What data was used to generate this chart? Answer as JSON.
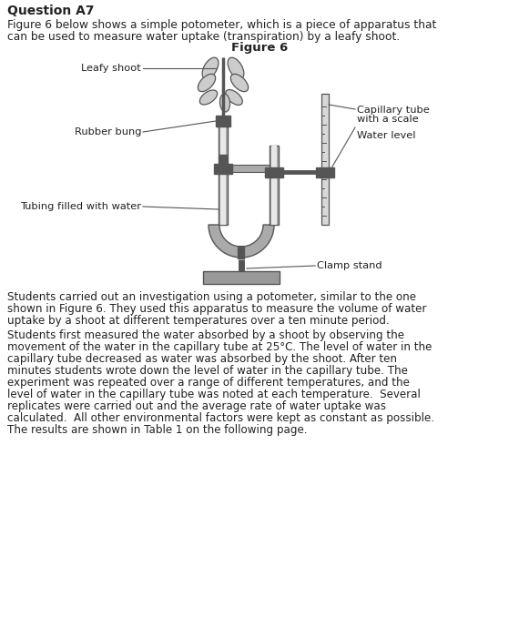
{
  "title": "Question A7",
  "fig_label": "Figure 6",
  "intro_line1": "Figure 6 below shows a simple potometer, which is a piece of apparatus that",
  "intro_line2": "can be used to measure water uptake (transpiration) by a leafy shoot.",
  "para1_lines": [
    "Students carried out an investigation using a potometer, similar to the one",
    "shown in Figure 6. They used this apparatus to measure the volume of water",
    "uptake by a shoot at different temperatures over a ten minute period."
  ],
  "para2_lines": [
    "Students first measured the water absorbed by a shoot by observing the",
    "movement of the water in the capillary tube at 25°C. The level of water in the",
    "capillary tube decreased as water was absorbed by the shoot. After ten",
    "minutes students wrote down the level of water in the capillary tube. The",
    "experiment was repeated over a range of different temperatures, and the",
    "level of water in the capillary tube was noted at each temperature.  Several",
    "replicates were carried out and the average rate of water uptake was",
    "calculated.  All other environmental factors were kept as constant as possible.",
    "The results are shown in Table 1 on the following page."
  ],
  "label_leafy_shoot": "Leafy shoot",
  "label_rubber_bung": "Rubber bung",
  "label_capillary_tube_l1": "Capillary tube",
  "label_capillary_tube_l2": "with a scale",
  "label_water_level": "Water level",
  "label_tubing": "Tubing filled with water",
  "label_clamp": "Clamp stand",
  "bg_color": "#ffffff",
  "text_color": "#222222",
  "gray_mid": "#999999",
  "gray_dark": "#555555",
  "gray_light": "#cccccc",
  "gray_tube": "#aaaaaa"
}
